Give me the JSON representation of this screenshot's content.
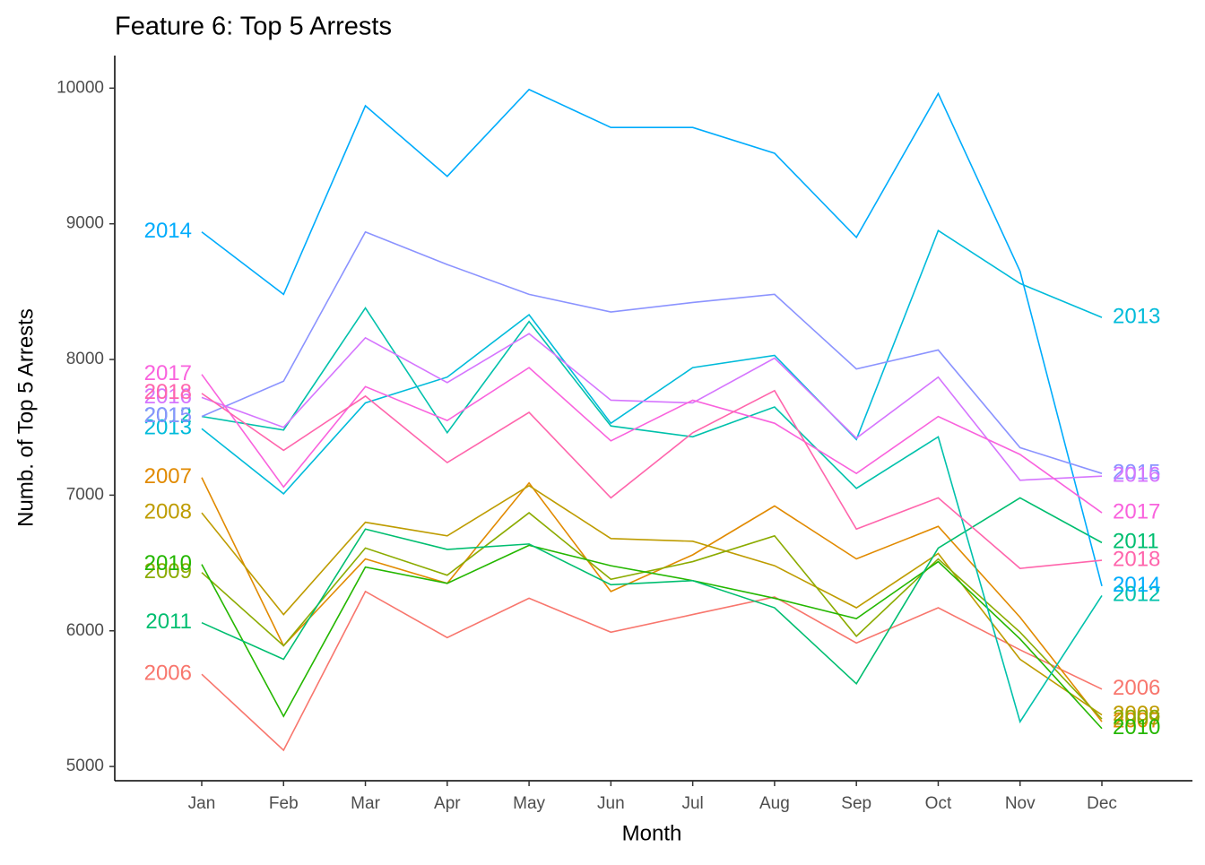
{
  "chart_data": {
    "type": "line",
    "title": "Feature 6: Top 5 Arrests",
    "x_label": "Month",
    "y_label": "Numb. of Top 5 Arrests",
    "categories": [
      "Jan",
      "Feb",
      "Mar",
      "Apr",
      "May",
      "Jun",
      "Jul",
      "Aug",
      "Sep",
      "Oct",
      "Nov",
      "Dec"
    ],
    "ylim": [
      4895,
      10240
    ],
    "yticks": [
      5000,
      6000,
      7000,
      8000,
      9000,
      10000
    ],
    "series": [
      {
        "name": "2006",
        "color": "#F8766D",
        "values": [
          5680,
          5120,
          6290,
          5950,
          6240,
          5990,
          6120,
          6250,
          5910,
          6170,
          5860,
          5570
        ]
      },
      {
        "name": "2007",
        "color": "#E18A00",
        "values": [
          7130,
          5890,
          6530,
          6350,
          7090,
          6290,
          6560,
          6920,
          6530,
          6770,
          6100,
          5330
        ]
      },
      {
        "name": "2008",
        "color": "#BE9C00",
        "values": [
          6870,
          6120,
          6800,
          6700,
          7070,
          6680,
          6660,
          6480,
          6170,
          6570,
          5790,
          5380
        ]
      },
      {
        "name": "2009",
        "color": "#8CAB00",
        "values": [
          6430,
          5890,
          6610,
          6410,
          6870,
          6380,
          6510,
          6700,
          5960,
          6530,
          5990,
          5350
        ]
      },
      {
        "name": "2010",
        "color": "#24B700",
        "values": [
          6490,
          5370,
          6470,
          6350,
          6630,
          6480,
          6370,
          6240,
          6090,
          6510,
          5940,
          5280
        ]
      },
      {
        "name": "2011",
        "color": "#00BE70",
        "values": [
          6060,
          5790,
          6750,
          6600,
          6640,
          6340,
          6370,
          6170,
          5610,
          6610,
          6980,
          6650
        ]
      },
      {
        "name": "2012",
        "color": "#00C1AB",
        "values": [
          7580,
          7480,
          8380,
          7460,
          8280,
          7510,
          7430,
          7650,
          7050,
          7430,
          5330,
          6260
        ]
      },
      {
        "name": "2013",
        "color": "#00BBDA",
        "values": [
          7490,
          7010,
          7680,
          7870,
          8330,
          7530,
          7940,
          8030,
          7410,
          8950,
          8560,
          8310
        ]
      },
      {
        "name": "2014",
        "color": "#00ACFC",
        "values": [
          8940,
          8480,
          9870,
          9350,
          9990,
          9710,
          9710,
          9520,
          8900,
          9960,
          8650,
          6330
        ]
      },
      {
        "name": "2015",
        "color": "#8B93FF",
        "values": [
          7580,
          7840,
          8940,
          8700,
          8480,
          8350,
          8420,
          8480,
          7930,
          8070,
          7350,
          7160
        ]
      },
      {
        "name": "2016",
        "color": "#D575FE",
        "values": [
          7720,
          7500,
          8160,
          7830,
          8190,
          7700,
          7680,
          8010,
          7420,
          7870,
          7110,
          7140
        ]
      },
      {
        "name": "2017",
        "color": "#F962DD",
        "values": [
          7890,
          7060,
          7800,
          7550,
          7940,
          7400,
          7700,
          7530,
          7160,
          7580,
          7300,
          6870
        ]
      },
      {
        "name": "2018",
        "color": "#FF65AC",
        "values": [
          7750,
          7330,
          7730,
          7240,
          7610,
          6980,
          7460,
          7770,
          6750,
          6980,
          6460,
          6520
        ]
      }
    ]
  }
}
